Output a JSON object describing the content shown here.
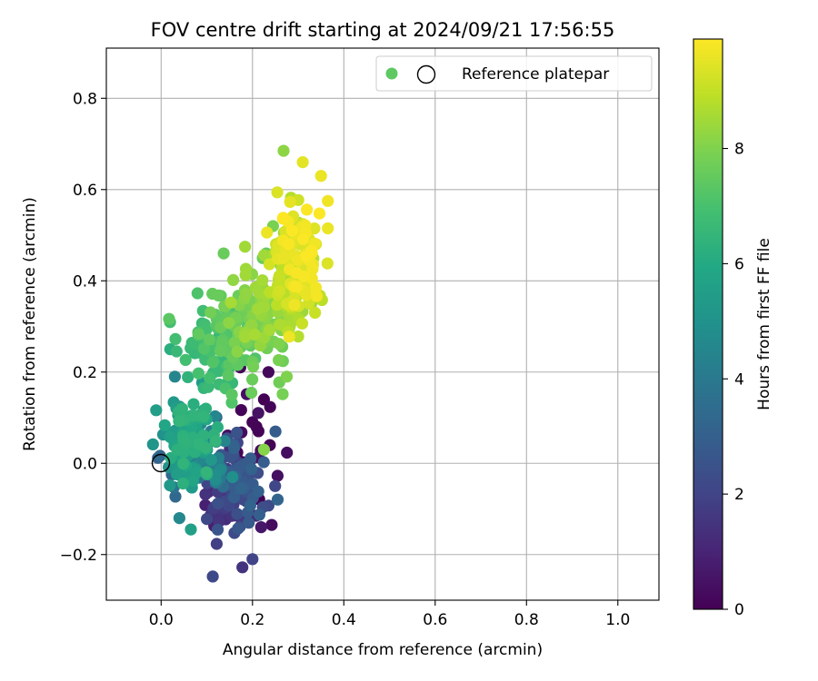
{
  "chart_data": {
    "type": "scatter",
    "title": "FOV centre drift starting at 2024/09/21 17:56:55",
    "xlabel": "Angular distance from reference (arcmin)",
    "ylabel": "Rotation from reference (arcmin)",
    "xlim": [
      -0.12,
      1.09
    ],
    "ylim": [
      -0.3,
      0.91
    ],
    "xticks": [
      0.0,
      0.2,
      0.4,
      0.6,
      0.8,
      1.0
    ],
    "xtick_labels": [
      "0.0",
      "0.2",
      "0.4",
      "0.6",
      "0.8",
      "1.0"
    ],
    "yticks": [
      -0.2,
      0.0,
      0.2,
      0.4,
      0.6,
      0.8
    ],
    "ytick_labels": [
      "−0.2",
      "0.0",
      "0.2",
      "0.4",
      "0.6",
      "0.8"
    ],
    "grid": true,
    "legend": {
      "position": "top-right",
      "entries": [
        {
          "label": "",
          "marker": "filled-circle",
          "color": "#5ec962"
        },
        {
          "label": "Reference platepar",
          "marker": "open-circle",
          "color": "#000000"
        }
      ]
    },
    "reference_point": {
      "x": 0.0,
      "y": 0.0
    },
    "colorbar": {
      "label": "Hours from first FF file",
      "range": [
        0,
        9.9
      ],
      "ticks": [
        0,
        2,
        4,
        6,
        8
      ],
      "tick_labels": [
        "0",
        "2",
        "4",
        "6",
        "8"
      ],
      "colormap": "viridis"
    },
    "clusters": [
      {
        "hours": [
          0.0,
          0.5
        ],
        "x_center": 0.2,
        "x_spread": 0.05,
        "y_center": 0.02,
        "y_spread": 0.12,
        "n": 20
      },
      {
        "hours": [
          0.8,
          3.2
        ],
        "x_center": 0.155,
        "x_spread": 0.045,
        "y_center": -0.06,
        "y_spread": 0.07,
        "n": 150
      },
      {
        "hours": [
          3.2,
          5.0
        ],
        "x_center": 0.09,
        "x_spread": 0.045,
        "y_center": 0.01,
        "y_spread": 0.06,
        "n": 70
      },
      {
        "hours": [
          5.0,
          6.5
        ],
        "x_center": 0.06,
        "x_spread": 0.035,
        "y_center": 0.05,
        "y_spread": 0.07,
        "n": 110
      },
      {
        "hours": [
          6.5,
          7.6
        ],
        "x_center": 0.14,
        "x_spread": 0.05,
        "y_center": 0.27,
        "y_spread": 0.07,
        "n": 110
      },
      {
        "hours": [
          7.6,
          8.6
        ],
        "x_center": 0.22,
        "x_spread": 0.05,
        "y_center": 0.33,
        "y_spread": 0.08,
        "n": 120
      },
      {
        "hours": [
          8.6,
          9.9
        ],
        "x_center": 0.295,
        "x_spread": 0.035,
        "y_center": 0.44,
        "y_spread": 0.09,
        "n": 150
      }
    ],
    "extra_points": [
      {
        "x": 0.268,
        "y": 0.685,
        "h": 8.2
      },
      {
        "x": 0.31,
        "y": 0.66,
        "h": 9.5
      },
      {
        "x": 0.35,
        "y": 0.63,
        "h": 9.6
      },
      {
        "x": 0.365,
        "y": 0.575,
        "h": 9.7
      },
      {
        "x": 0.365,
        "y": 0.515,
        "h": 9.6
      },
      {
        "x": 0.245,
        "y": 0.52,
        "h": 7.9
      },
      {
        "x": 0.23,
        "y": 0.46,
        "h": 7.5
      },
      {
        "x": 0.137,
        "y": 0.46,
        "h": 7.6
      },
      {
        "x": 0.275,
        "y": 0.19,
        "h": 8.0
      },
      {
        "x": 0.225,
        "y": 0.14,
        "h": 0.0
      },
      {
        "x": 0.238,
        "y": 0.04,
        "h": 0.1
      },
      {
        "x": 0.225,
        "y": 0.03,
        "h": 8.1
      },
      {
        "x": 0.242,
        "y": -0.135,
        "h": 0.3
      },
      {
        "x": 0.219,
        "y": -0.14,
        "h": 0.6
      },
      {
        "x": 0.2,
        "y": -0.21,
        "h": 2.0
      },
      {
        "x": 0.113,
        "y": -0.248,
        "h": 2.2
      },
      {
        "x": 0.178,
        "y": -0.228,
        "h": 1.5
      },
      {
        "x": 0.02,
        "y": 0.25,
        "h": 6.2
      },
      {
        "x": 0.03,
        "y": 0.19,
        "h": 4.5
      },
      {
        "x": 0.065,
        "y": -0.145,
        "h": 5.6
      },
      {
        "x": 0.04,
        "y": -0.12,
        "h": 4.6
      },
      {
        "x": 0.235,
        "y": 0.2,
        "h": 0.2
      },
      {
        "x": 0.2,
        "y": 0.09,
        "h": 0.1
      }
    ]
  }
}
